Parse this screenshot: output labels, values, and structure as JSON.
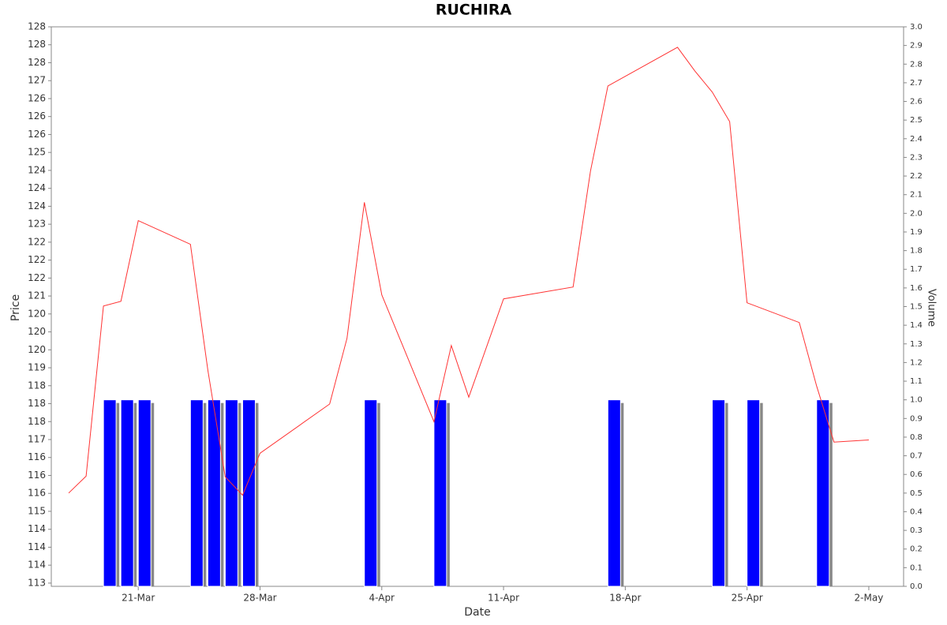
{
  "chart_data": {
    "type": "line",
    "title": "RUCHIRA",
    "x_label": "Date",
    "y_label": "Price",
    "y2_label": "Volume",
    "xlim": [
      "16-Mar",
      "4-May"
    ],
    "xticks": [
      "21-Mar",
      "28-Mar",
      "4-Apr",
      "11-Apr",
      "18-Apr",
      "25-Apr",
      "2-May"
    ],
    "ylim": [
      112.91,
      128.5
    ],
    "yticks": [
      {
        "value": 113.0,
        "label": "113"
      },
      {
        "value": 113.5,
        "label": "114"
      },
      {
        "value": 114.0,
        "label": "114"
      },
      {
        "value": 114.5,
        "label": "114"
      },
      {
        "value": 115.0,
        "label": "115"
      },
      {
        "value": 115.5,
        "label": "116"
      },
      {
        "value": 116.0,
        "label": "116"
      },
      {
        "value": 116.5,
        "label": "116"
      },
      {
        "value": 117.0,
        "label": "117"
      },
      {
        "value": 117.5,
        "label": "118"
      },
      {
        "value": 118.0,
        "label": "118"
      },
      {
        "value": 118.5,
        "label": "118"
      },
      {
        "value": 119.0,
        "label": "119"
      },
      {
        "value": 119.5,
        "label": "120"
      },
      {
        "value": 120.0,
        "label": "120"
      },
      {
        "value": 120.5,
        "label": "120"
      },
      {
        "value": 121.0,
        "label": "121"
      },
      {
        "value": 121.5,
        "label": "122"
      },
      {
        "value": 122.0,
        "label": "122"
      },
      {
        "value": 122.5,
        "label": "122"
      },
      {
        "value": 123.0,
        "label": "123"
      },
      {
        "value": 123.5,
        "label": "124"
      },
      {
        "value": 124.0,
        "label": "124"
      },
      {
        "value": 124.5,
        "label": "124"
      },
      {
        "value": 125.0,
        "label": "125"
      },
      {
        "value": 125.5,
        "label": "126"
      },
      {
        "value": 126.0,
        "label": "126"
      },
      {
        "value": 126.5,
        "label": "126"
      },
      {
        "value": 127.0,
        "label": "127"
      },
      {
        "value": 127.5,
        "label": "128"
      },
      {
        "value": 128.0,
        "label": "128"
      },
      {
        "value": 128.5,
        "label": "128"
      }
    ],
    "y2lim": [
      0,
      3.0
    ],
    "y2ticks": [
      {
        "value": 0,
        "label": "0.0"
      },
      {
        "value": 0.1,
        "label": "0.1"
      },
      {
        "value": 0.2,
        "label": "0.2"
      },
      {
        "value": 0.3,
        "label": "0.3"
      },
      {
        "value": 0.4,
        "label": "0.4"
      },
      {
        "value": 0.5,
        "label": "0.5"
      },
      {
        "value": 0.6,
        "label": "0.6"
      },
      {
        "value": 0.7,
        "label": "0.7"
      },
      {
        "value": 0.8,
        "label": "0.8"
      },
      {
        "value": 0.9,
        "label": "0.9"
      },
      {
        "value": 1.0,
        "label": "1.0"
      },
      {
        "value": 1.1,
        "label": "1.1"
      },
      {
        "value": 1.2,
        "label": "1.2"
      },
      {
        "value": 1.3,
        "label": "1.3"
      },
      {
        "value": 1.4,
        "label": "1.4"
      },
      {
        "value": 1.5,
        "label": "1.5"
      },
      {
        "value": 1.6,
        "label": "1.6"
      },
      {
        "value": 1.7,
        "label": "1.7"
      },
      {
        "value": 1.8,
        "label": "1.8"
      },
      {
        "value": 1.9,
        "label": "1.9"
      },
      {
        "value": 2.0,
        "label": "2.0"
      },
      {
        "value": 2.1,
        "label": "2.1"
      },
      {
        "value": 2.2,
        "label": "2.2"
      },
      {
        "value": 2.3,
        "label": "2.3"
      },
      {
        "value": 2.4,
        "label": "2.4"
      },
      {
        "value": 2.5,
        "label": "2.5"
      },
      {
        "value": 2.6,
        "label": "2.6"
      },
      {
        "value": 2.7,
        "label": "2.7"
      },
      {
        "value": 2.8,
        "label": "2.8"
      },
      {
        "value": 2.9,
        "label": "2.9"
      },
      {
        "value": 3.0,
        "label": "3.0"
      }
    ],
    "series": [
      {
        "type": "line",
        "color": "#ff3333",
        "x": [
          "17-Mar",
          "18-Mar",
          "19-Mar",
          "20-Mar",
          "21-Mar",
          "24-Mar",
          "25-Mar",
          "26-Mar",
          "27-Mar",
          "28-Mar",
          "1-Apr",
          "2-Apr",
          "3-Apr",
          "4-Apr",
          "7-Apr",
          "8-Apr",
          "9-Apr",
          "11-Apr",
          "15-Apr",
          "16-Apr",
          "17-Apr",
          "21-Apr",
          "22-Apr",
          "23-Apr",
          "24-Apr",
          "25-Apr",
          "28-Apr",
          "29-Apr",
          "30-Apr",
          "2-May"
        ],
        "values": [
          115.51,
          115.98,
          120.72,
          120.85,
          123.1,
          122.44,
          118.93,
          115.96,
          115.45,
          116.62,
          117.99,
          119.82,
          123.61,
          121.03,
          117.5,
          119.62,
          118.18,
          120.92,
          121.25,
          124.49,
          126.85,
          127.93,
          127.27,
          126.68,
          125.86,
          120.81,
          120.26,
          118.49,
          116.93,
          116.99
        ]
      },
      {
        "type": "bar",
        "axis": "y2",
        "color": "#0000ff",
        "x": [
          "19-Mar",
          "20-Mar",
          "21-Mar",
          "24-Mar",
          "25-Mar",
          "26-Mar",
          "27-Mar",
          "3-Apr",
          "7-Apr",
          "17-Apr",
          "23-Apr",
          "25-Apr",
          "29-Apr"
        ],
        "values": [
          1.0,
          1.0,
          1.0,
          1.0,
          1.0,
          1.0,
          1.0,
          1.0,
          1.0,
          1.0,
          1.0,
          1.0,
          1.0
        ]
      }
    ]
  }
}
